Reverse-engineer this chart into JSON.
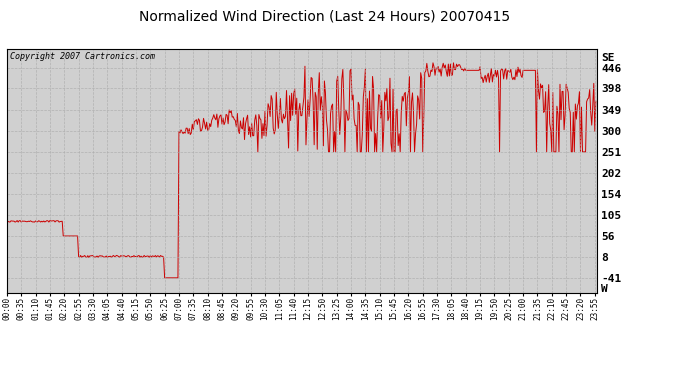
{
  "title": "Normalized Wind Direction (Last 24 Hours) 20070415",
  "copyright_text": "Copyright 2007 Cartronics.com",
  "line_color": "#cc0000",
  "background_color": "#ffffff",
  "plot_bg_color": "#d8d8d8",
  "grid_color": "#aaaaaa",
  "yticks": [
    -41,
    8,
    56,
    105,
    154,
    202,
    251,
    300,
    349,
    398,
    446
  ],
  "right_ytick_labels": [
    "SE",
    "446",
    "398",
    "349",
    "300",
    "251",
    "202",
    "154",
    "105",
    "56",
    "8",
    "-41",
    "W"
  ],
  "right_ytick_values": [
    470,
    446,
    398,
    349,
    300,
    251,
    202,
    154,
    105,
    56,
    8,
    -41,
    -65
  ],
  "ylim": [
    -75,
    490
  ],
  "xtick_labels": [
    "00:00",
    "00:35",
    "01:10",
    "01:45",
    "02:20",
    "02:55",
    "03:30",
    "04:05",
    "04:40",
    "05:15",
    "05:50",
    "06:25",
    "07:00",
    "07:35",
    "08:10",
    "08:45",
    "09:20",
    "09:55",
    "10:30",
    "11:05",
    "11:40",
    "12:15",
    "12:50",
    "13:25",
    "14:00",
    "14:35",
    "15:10",
    "15:45",
    "16:20",
    "16:55",
    "17:30",
    "18:05",
    "18:40",
    "19:15",
    "19:50",
    "20:25",
    "21:00",
    "21:35",
    "22:10",
    "22:45",
    "23:20",
    "23:55"
  ],
  "figsize": [
    6.9,
    3.75
  ],
  "dpi": 100
}
